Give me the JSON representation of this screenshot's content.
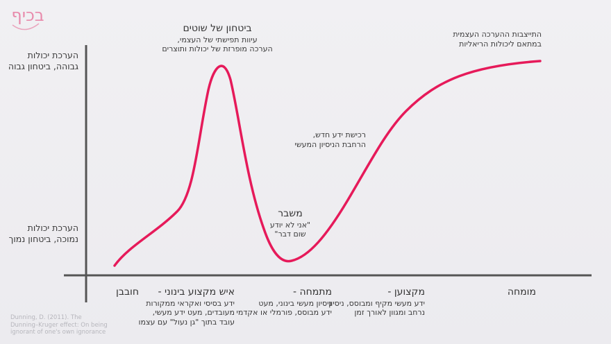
{
  "logo": {
    "text": "בכיף",
    "color": "#e88aab"
  },
  "colors": {
    "curve": "#e61a5a",
    "axis": "#555555"
  },
  "y_axis": {
    "high": [
      "הערכת יכולות",
      "גבוהה, ביטחון גבוה"
    ],
    "low": [
      "הערכת יכולות",
      "נמוכה, ביטחון נמוך"
    ]
  },
  "annotations": {
    "peak": {
      "title": "ביטחון של שוטים",
      "lines": [
        "עיוות תפישתי של העצמי,",
        "הערכה מופרזת של יכולות ותוצרים"
      ]
    },
    "plateau": {
      "lines": [
        "התייצבות ההערכה העצמית",
        "במתאם ליכולות הריאליות"
      ]
    },
    "crisis": {
      "title": "משבר",
      "lines": [
        "\"אני לא יודע",
        "שום דבר\""
      ]
    },
    "learning": {
      "lines": [
        "רכישת ידע חדש,",
        "הרחבת הניסיון המעשי"
      ]
    }
  },
  "x_axis": [
    {
      "title": "חובבן",
      "lines": []
    },
    {
      "title": "איש מקצוע בינוני -",
      "lines": [
        "ידע בסיסי ואקראי ממקורות",
        "מעובדים, מעט ידע מעשי,",
        "עובד בתוך \"גן נעול\" עם עצמו"
      ]
    },
    {
      "title": "מתמחה -",
      "lines": [
        "ניסיון מעשי בינוני, מעט",
        "ידע מבוסס, פורמלי או אקדמי"
      ]
    },
    {
      "title": "מקצוען -",
      "lines": [
        "ידע מעשי מקיף ומבוסס, ניסיון",
        "נרחב ומגוון לאורך זמן"
      ]
    },
    {
      "title": "מומחה",
      "lines": []
    }
  ],
  "citation": "Dunning, D. (2011). The Dunning–Kruger effect: On being ignorant of one's own ignorance"
}
